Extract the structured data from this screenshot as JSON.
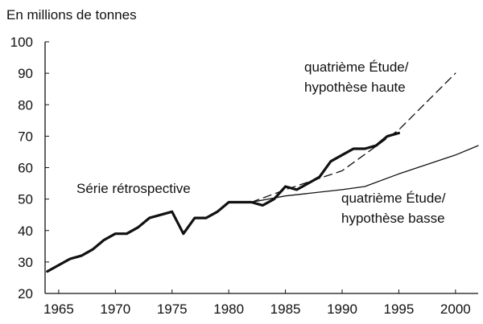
{
  "chart_data": {
    "type": "line",
    "ylabel": "En millions de tonnes",
    "xlabel": "",
    "xlim": [
      1963.8,
      2002
    ],
    "ylim": [
      20,
      100
    ],
    "x_ticks": [
      1965,
      1970,
      1975,
      1980,
      1985,
      1990,
      1995,
      2000
    ],
    "y_ticks": [
      20,
      30,
      40,
      50,
      60,
      70,
      80,
      90,
      100
    ],
    "grid": false,
    "series": [
      {
        "key": "historical",
        "style": "solid-thick",
        "color": "#111111",
        "x": [
          1964,
          1966,
          1967,
          1968,
          1969,
          1970,
          1971,
          1972,
          1973,
          1975,
          1976,
          1977,
          1978,
          1979,
          1980,
          1981,
          1982,
          1983,
          1984,
          1985,
          1986,
          1987,
          1988,
          1989,
          1990,
          1991,
          1992,
          1993,
          1994,
          1995
        ],
        "y": [
          27,
          31,
          32,
          34,
          37,
          39,
          39,
          41,
          44,
          46,
          39,
          44,
          44,
          46,
          49,
          49,
          49,
          48,
          50,
          54,
          53,
          55,
          57,
          62,
          64,
          66,
          66,
          67,
          70,
          71
        ]
      },
      {
        "key": "high",
        "style": "dashed",
        "color": "#111111",
        "x": [
          1982,
          1985,
          1990,
          1995,
          2000
        ],
        "y": [
          49,
          53,
          59,
          72,
          90
        ]
      },
      {
        "key": "low",
        "style": "solid-thin",
        "color": "#111111",
        "x": [
          1982,
          1985,
          1990,
          1992,
          1995,
          2000,
          2002
        ],
        "y": [
          49,
          51,
          53,
          54,
          58,
          64,
          67
        ]
      }
    ],
    "annotations": [
      {
        "key": "historical",
        "lines": [
          "Série rétrospective"
        ]
      },
      {
        "key": "high",
        "lines": [
          "quatrième Étude/",
          "hypothèse haute"
        ]
      },
      {
        "key": "low",
        "lines": [
          "quatrième Étude/",
          "hypothèse basse"
        ]
      }
    ]
  }
}
